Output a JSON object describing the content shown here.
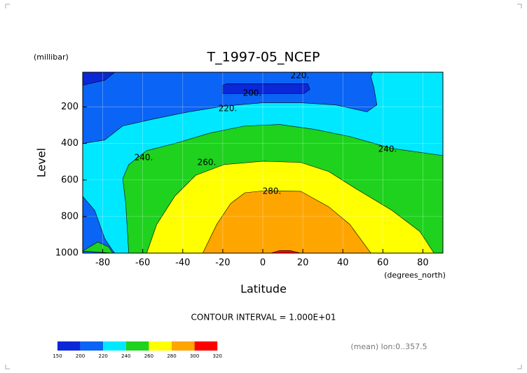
{
  "chart_data": {
    "type": "contour",
    "title": "T_1997-05_NCEP",
    "y_units": "(millibar)",
    "y_label": "Level",
    "x_label": "Latitude",
    "x_units": "(degrees_north)",
    "xlim": [
      -90,
      90
    ],
    "xticks": [
      -80,
      -60,
      -40,
      -20,
      0,
      20,
      40,
      60,
      80
    ],
    "ylim": [
      1000,
      10
    ],
    "yticks": [
      200,
      400,
      600,
      800,
      1000
    ],
    "grid": true,
    "levels": [
      150,
      200,
      220,
      240,
      260,
      280,
      300,
      320
    ],
    "colors": [
      "#0a28d8",
      "#0a64f5",
      "#00e8ff",
      "#1ed21e",
      "#ffff00",
      "#ffa500",
      "#ff0000"
    ],
    "regions": [
      {
        "level": 200,
        "x": [
          -90,
          90,
          90,
          -90
        ],
        "y": [
          10,
          10,
          1000,
          1000
        ]
      },
      {
        "level": 220,
        "x": [
          -90,
          -79,
          -70,
          -54.5,
          -37,
          -19.5,
          0,
          19,
          36.5,
          52,
          57,
          55.5,
          54,
          55,
          90,
          90,
          -90
        ],
        "y": [
          400,
          381,
          304,
          266,
          227,
          196,
          177,
          177,
          189,
          227,
          189,
          92,
          35,
          10,
          10,
          1000,
          1000
        ]
      },
      {
        "level": 200,
        "x": [
          -90,
          -84,
          -79,
          -75.5,
          -74,
          -90
        ],
        "y": [
          689,
          766,
          920,
          978,
          1000,
          1000
        ]
      },
      {
        "level": 240,
        "x": [
          -90,
          -82.5,
          -77,
          -75
        ],
        "y": [
          989,
          939,
          966,
          1000
        ]
      },
      {
        "level": 240,
        "x": [
          -67,
          -68.5,
          -70,
          -67,
          -58,
          -44,
          -26.5,
          -9,
          8.5,
          26,
          43.5,
          64.5,
          90,
          90
        ],
        "y": [
          1000,
          728,
          593,
          516,
          439,
          400,
          343,
          304,
          296,
          323,
          362,
          427,
          466,
          1000
        ]
      },
      {
        "level": 260,
        "x": [
          -58,
          -53,
          -44,
          -33.5,
          -19.5,
          0,
          19,
          33,
          47,
          64.5,
          78.5,
          85.5
        ],
        "y": [
          1000,
          843,
          689,
          574,
          516,
          497,
          504,
          554,
          651,
          766,
          882,
          1000
        ]
      },
      {
        "level": 280,
        "x": [
          -30,
          -23,
          -16,
          -9,
          1.5,
          19,
          33,
          43.5,
          54
        ],
        "y": [
          1000,
          843,
          728,
          670,
          658,
          662,
          747,
          843,
          1000
        ]
      },
      {
        "level": 300,
        "x": [
          4,
          8.5,
          13.5,
          19
        ],
        "y": [
          1000,
          986,
          986,
          1000
        ]
      },
      {
        "level": 150,
        "x": [
          -90,
          -74,
          -79,
          -90
        ],
        "y": [
          10,
          10,
          54,
          81
        ]
      },
      {
        "level": 150,
        "x": [
          -20,
          -18,
          22.5,
          23.5,
          20.5,
          -20
        ],
        "y": [
          81,
          73,
          73,
          104,
          127,
          127
        ]
      }
    ],
    "contour_labels": [
      "220.",
      "200.",
      "220.",
      "240.",
      "260.",
      "280.",
      "240."
    ],
    "note": "CONTOUR INTERVAL = 1.000E+01",
    "footer": "(mean) lon:0..357.5"
  }
}
